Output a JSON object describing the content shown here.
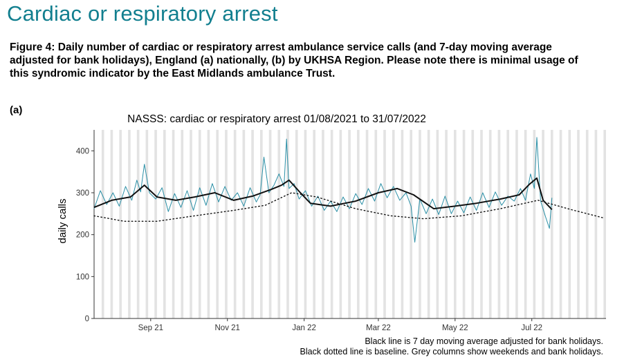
{
  "page": {
    "heading": "Cardiac or respiratory arrest",
    "caption": "Figure 4: Daily number of cardiac or respiratory arrest ambulance service calls (and 7-day moving average adjusted for bank holidays), England (a) nationally, (b) by UKHSA Region. Please note there is minimal usage of this syndromic indicator by the East Midlands ambulance Trust.",
    "panel_label": "(a)"
  },
  "colors": {
    "daily_series": "#2a8fa6",
    "moving_average": "#111111",
    "baseline": "#111111",
    "weekend_columns": "#e3e3e3",
    "axis": "#333333"
  },
  "chart_data": {
    "type": "line",
    "title": "NASSS: cardiac or respiratory arrest 01/08/2021 to 31/07/2022",
    "xlabel": "",
    "ylabel": "daily calls",
    "x_range": [
      "2021-08-01",
      "2022-09-12"
    ],
    "ylim": [
      0,
      450
    ],
    "yticks": [
      0,
      100,
      200,
      300,
      400
    ],
    "xticks": [
      {
        "label": "Sep 21",
        "date": "2021-09-15"
      },
      {
        "label": "Nov 21",
        "date": "2021-11-15"
      },
      {
        "label": "Jan 22",
        "date": "2022-01-15"
      },
      {
        "label": "Mar 22",
        "date": "2022-03-15"
      },
      {
        "label": "May 22",
        "date": "2022-05-15"
      },
      {
        "label": "Jul 22",
        "date": "2022-07-15"
      }
    ],
    "grid": false,
    "weekend_and_bank_holiday_columns": true,
    "series": [
      {
        "key": "daily",
        "style": "thin-teal",
        "points": [
          [
            "2021-08-01",
            262
          ],
          [
            "2021-08-06",
            305
          ],
          [
            "2021-08-11",
            272
          ],
          [
            "2021-08-16",
            300
          ],
          [
            "2021-08-21",
            268
          ],
          [
            "2021-08-26",
            315
          ],
          [
            "2021-08-31",
            282
          ],
          [
            "2021-09-04",
            330
          ],
          [
            "2021-09-07",
            302
          ],
          [
            "2021-09-10",
            368
          ],
          [
            "2021-09-14",
            300
          ],
          [
            "2021-09-19",
            285
          ],
          [
            "2021-09-24",
            312
          ],
          [
            "2021-09-29",
            255
          ],
          [
            "2021-10-04",
            298
          ],
          [
            "2021-10-09",
            265
          ],
          [
            "2021-10-14",
            305
          ],
          [
            "2021-10-19",
            258
          ],
          [
            "2021-10-24",
            312
          ],
          [
            "2021-10-29",
            270
          ],
          [
            "2021-11-03",
            322
          ],
          [
            "2021-11-08",
            278
          ],
          [
            "2021-11-13",
            315
          ],
          [
            "2021-11-18",
            282
          ],
          [
            "2021-11-23",
            300
          ],
          [
            "2021-11-28",
            268
          ],
          [
            "2021-12-03",
            312
          ],
          [
            "2021-12-08",
            278
          ],
          [
            "2021-12-11",
            295
          ],
          [
            "2021-12-14",
            385
          ],
          [
            "2021-12-18",
            300
          ],
          [
            "2021-12-22",
            318
          ],
          [
            "2021-12-26",
            345
          ],
          [
            "2021-12-30",
            315
          ],
          [
            "2022-01-01",
            428
          ],
          [
            "2022-01-03",
            310
          ],
          [
            "2022-01-07",
            322
          ],
          [
            "2022-01-11",
            285
          ],
          [
            "2022-01-16",
            305
          ],
          [
            "2022-01-21",
            268
          ],
          [
            "2022-01-26",
            292
          ],
          [
            "2022-01-31",
            258
          ],
          [
            "2022-02-05",
            280
          ],
          [
            "2022-02-10",
            255
          ],
          [
            "2022-02-15",
            290
          ],
          [
            "2022-02-20",
            262
          ],
          [
            "2022-02-25",
            298
          ],
          [
            "2022-03-02",
            272
          ],
          [
            "2022-03-07",
            310
          ],
          [
            "2022-03-12",
            280
          ],
          [
            "2022-03-17",
            322
          ],
          [
            "2022-03-22",
            288
          ],
          [
            "2022-03-27",
            315
          ],
          [
            "2022-04-01",
            282
          ],
          [
            "2022-04-06",
            300
          ],
          [
            "2022-04-10",
            268
          ],
          [
            "2022-04-13",
            182
          ],
          [
            "2022-04-17",
            285
          ],
          [
            "2022-04-22",
            250
          ],
          [
            "2022-04-27",
            285
          ],
          [
            "2022-05-02",
            248
          ],
          [
            "2022-05-07",
            292
          ],
          [
            "2022-05-12",
            250
          ],
          [
            "2022-05-17",
            280
          ],
          [
            "2022-05-22",
            252
          ],
          [
            "2022-05-27",
            290
          ],
          [
            "2022-06-01",
            258
          ],
          [
            "2022-06-06",
            300
          ],
          [
            "2022-06-11",
            265
          ],
          [
            "2022-06-16",
            302
          ],
          [
            "2022-06-21",
            270
          ],
          [
            "2022-06-26",
            292
          ],
          [
            "2022-07-01",
            280
          ],
          [
            "2022-07-06",
            310
          ],
          [
            "2022-07-10",
            282
          ],
          [
            "2022-07-14",
            345
          ],
          [
            "2022-07-17",
            310
          ],
          [
            "2022-07-19",
            432
          ],
          [
            "2022-07-22",
            280
          ],
          [
            "2022-07-26",
            242
          ],
          [
            "2022-07-29",
            215
          ],
          [
            "2022-07-31",
            288
          ]
        ]
      },
      {
        "key": "moving_average",
        "style": "thick-black",
        "points": [
          [
            "2021-08-01",
            265
          ],
          [
            "2021-08-15",
            282
          ],
          [
            "2021-08-30",
            290
          ],
          [
            "2021-09-10",
            318
          ],
          [
            "2021-09-20",
            290
          ],
          [
            "2021-10-05",
            282
          ],
          [
            "2021-10-20",
            290
          ],
          [
            "2021-11-05",
            300
          ],
          [
            "2021-11-20",
            282
          ],
          [
            "2021-12-05",
            292
          ],
          [
            "2021-12-20",
            308
          ],
          [
            "2021-12-28",
            318
          ],
          [
            "2022-01-03",
            330
          ],
          [
            "2022-01-12",
            300
          ],
          [
            "2022-01-20",
            275
          ],
          [
            "2022-02-05",
            268
          ],
          [
            "2022-02-25",
            280
          ],
          [
            "2022-03-15",
            300
          ],
          [
            "2022-03-30",
            310
          ],
          [
            "2022-04-12",
            295
          ],
          [
            "2022-04-28",
            262
          ],
          [
            "2022-05-15",
            268
          ],
          [
            "2022-06-01",
            275
          ],
          [
            "2022-06-20",
            285
          ],
          [
            "2022-07-05",
            295
          ],
          [
            "2022-07-13",
            320
          ],
          [
            "2022-07-19",
            335
          ],
          [
            "2022-07-24",
            282
          ],
          [
            "2022-07-31",
            260
          ]
        ]
      },
      {
        "key": "baseline",
        "style": "dotted-black",
        "points": [
          [
            "2021-08-01",
            245
          ],
          [
            "2021-08-25",
            232
          ],
          [
            "2021-09-20",
            232
          ],
          [
            "2021-10-20",
            245
          ],
          [
            "2021-11-20",
            258
          ],
          [
            "2021-12-15",
            270
          ],
          [
            "2022-01-05",
            300
          ],
          [
            "2022-01-25",
            290
          ],
          [
            "2022-02-25",
            262
          ],
          [
            "2022-03-25",
            245
          ],
          [
            "2022-04-20",
            238
          ],
          [
            "2022-05-20",
            245
          ],
          [
            "2022-06-20",
            262
          ],
          [
            "2022-07-20",
            282
          ],
          [
            "2022-08-15",
            260
          ],
          [
            "2022-09-10",
            240
          ]
        ]
      }
    ]
  },
  "footnotes": {
    "line1": "Black line is 7 day moving average adjusted for bank holidays.",
    "line2": "Black dotted line is baseline. Grey columns show weekends and bank holidays."
  }
}
